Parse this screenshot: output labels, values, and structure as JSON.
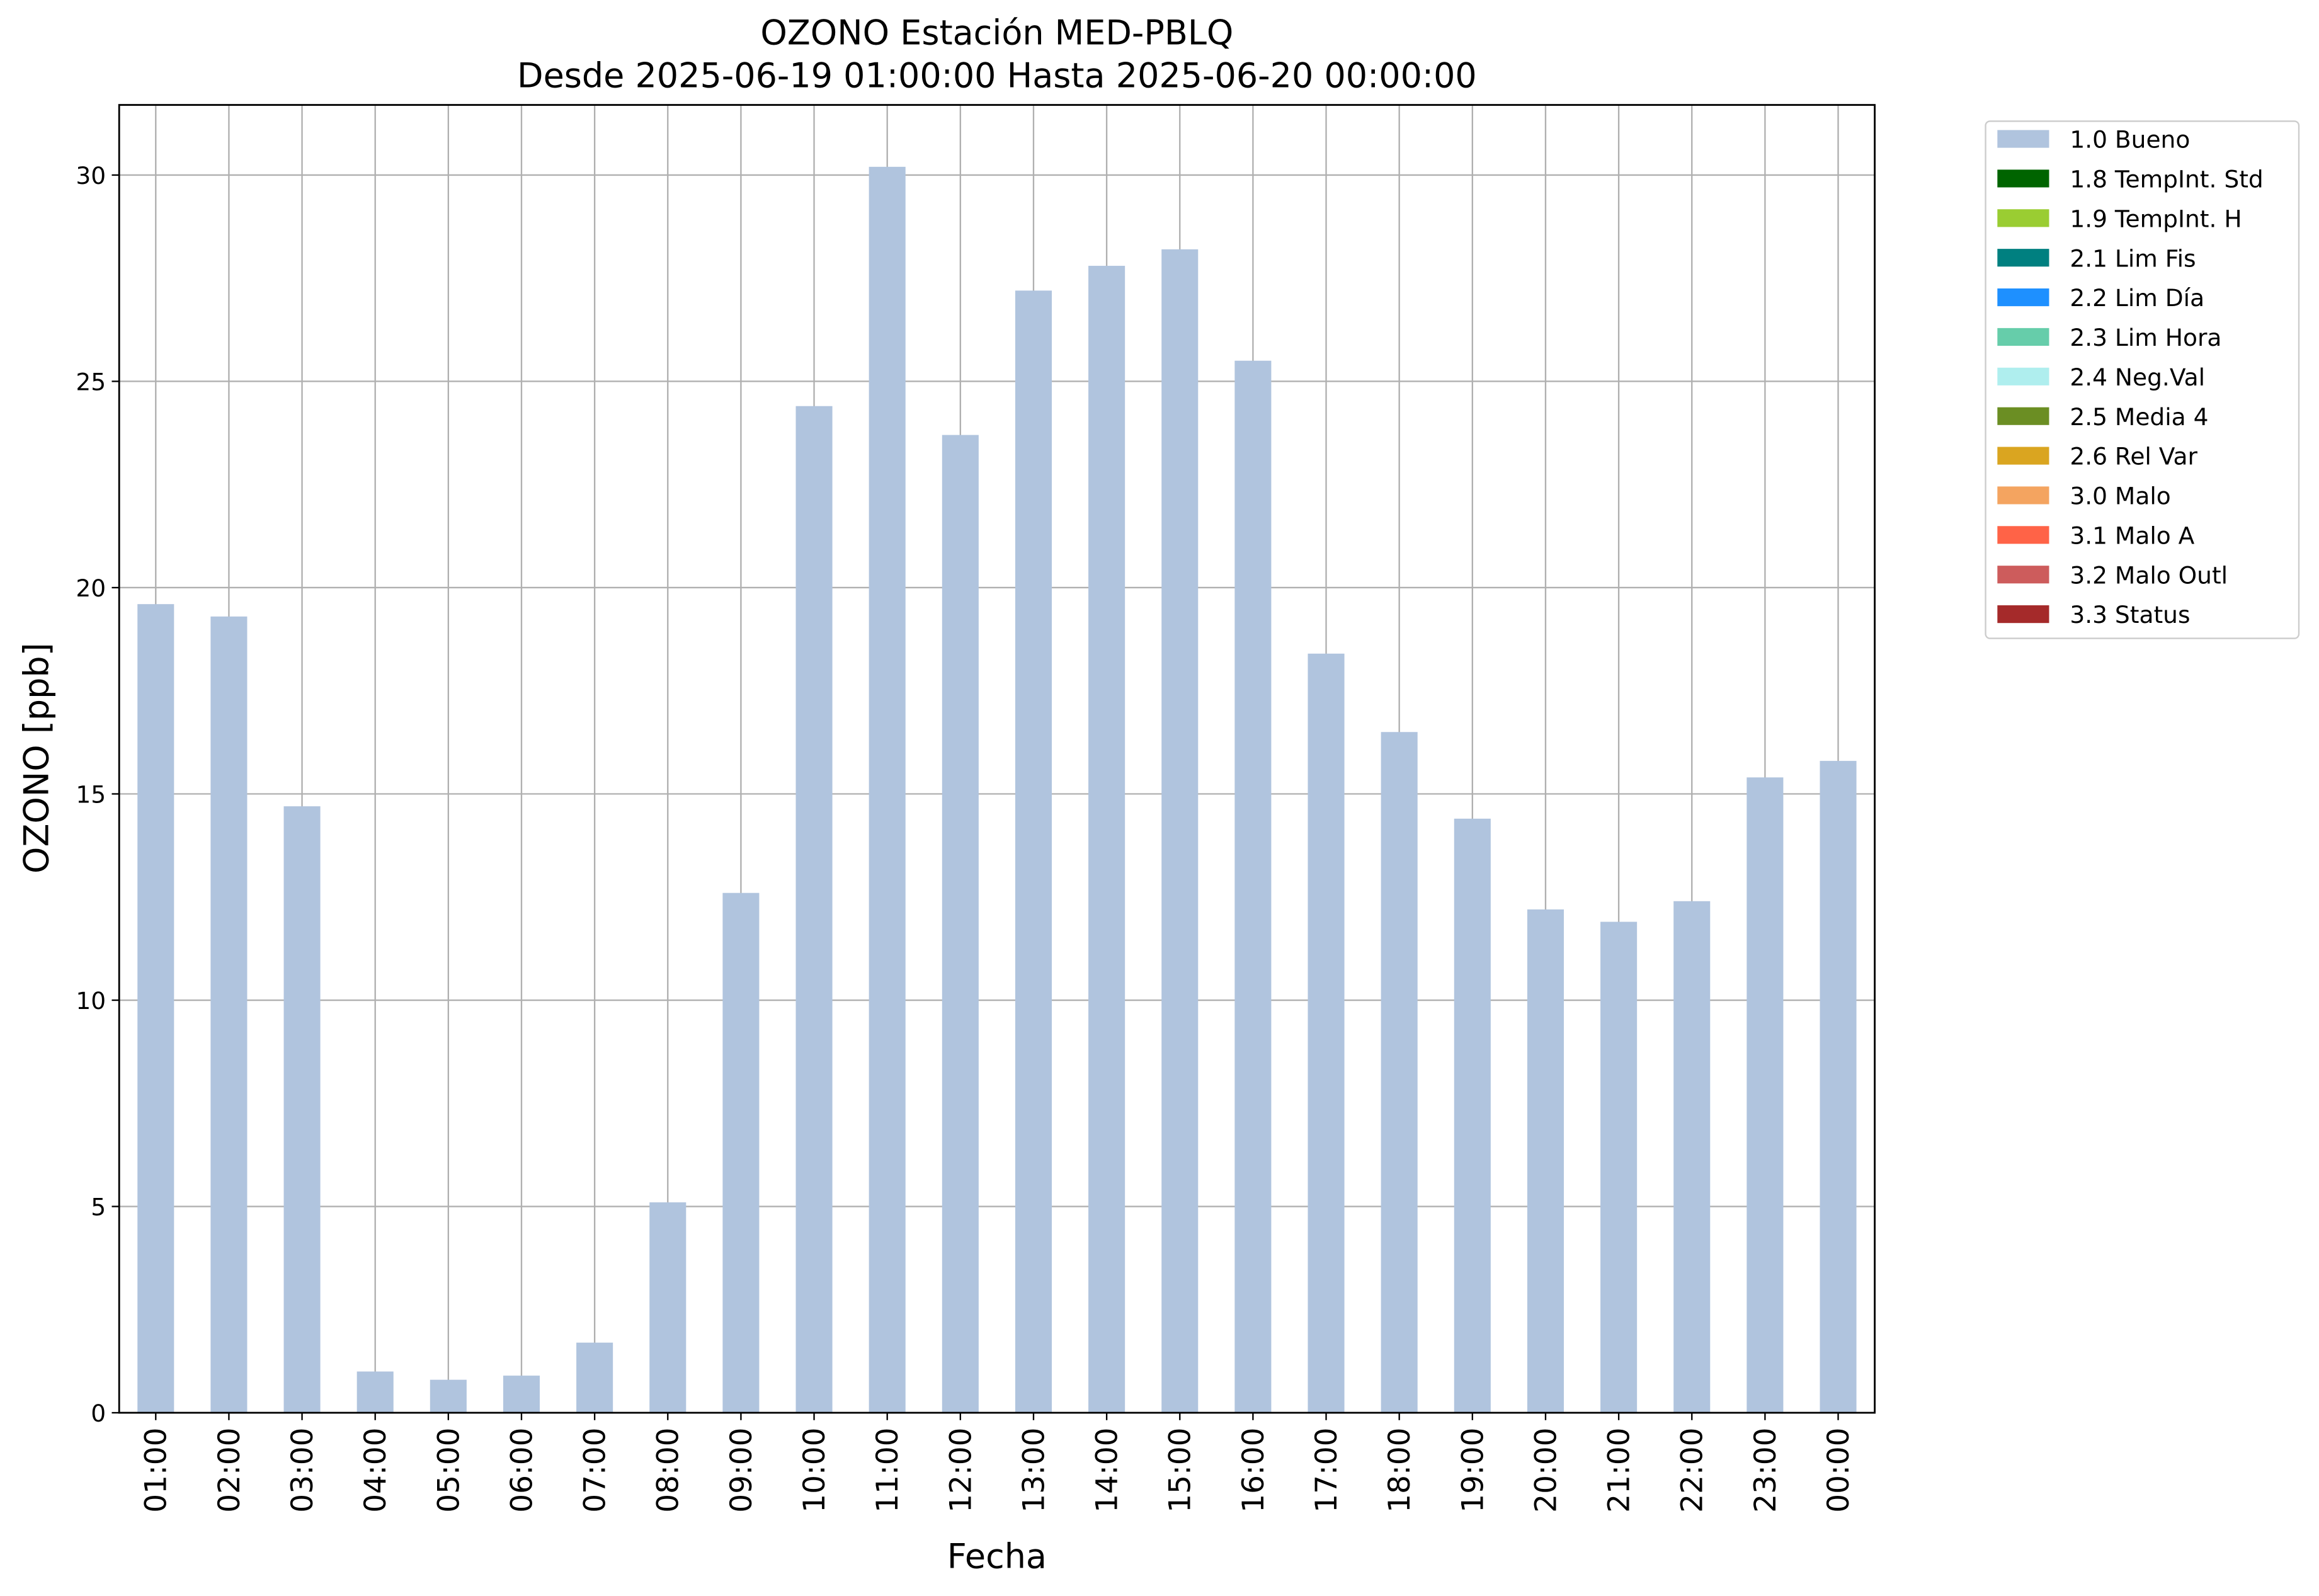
{
  "chart_data": {
    "type": "bar",
    "stacked": true,
    "title": "OZONO Estación MED-PBLQ",
    "subtitle": "Desde 2025-06-19 01:00:00 Hasta 2025-06-20 00:00:00",
    "x_label": "Fecha",
    "y_label": "OZONO [ppb]",
    "categories": [
      "01:00",
      "02:00",
      "03:00",
      "04:00",
      "05:00",
      "06:00",
      "07:00",
      "08:00",
      "09:00",
      "10:00",
      "11:00",
      "12:00",
      "13:00",
      "14:00",
      "15:00",
      "16:00",
      "17:00",
      "18:00",
      "19:00",
      "20:00",
      "21:00",
      "22:00",
      "23:00",
      "00:00"
    ],
    "series": [
      {
        "name": "1.0 Bueno",
        "color": "#b0c4de",
        "values": [
          19.6,
          19.3,
          14.7,
          1.0,
          0.8,
          0.9,
          1.7,
          5.1,
          12.6,
          24.4,
          30.2,
          23.7,
          27.2,
          27.8,
          28.2,
          25.5,
          18.4,
          16.5,
          14.4,
          12.2,
          11.9,
          12.4,
          15.4,
          15.8
        ]
      },
      {
        "name": "1.8 TempInt. Std",
        "color": "#006400",
        "values": [
          0,
          0,
          0,
          0,
          0,
          0,
          0,
          0,
          0,
          0,
          0,
          0,
          0,
          0,
          0,
          0,
          0,
          0,
          0,
          0,
          0,
          0,
          0,
          0
        ]
      },
      {
        "name": "1.9 TempInt. H",
        "color": "#9acd32",
        "values": [
          0,
          0,
          0,
          0,
          0,
          0,
          0,
          0,
          0,
          0,
          0,
          0,
          0,
          0,
          0,
          0,
          0,
          0,
          0,
          0,
          0,
          0,
          0,
          0
        ]
      },
      {
        "name": "2.1 Lim Fis",
        "color": "#008080",
        "values": [
          0,
          0,
          0,
          0,
          0,
          0,
          0,
          0,
          0,
          0,
          0,
          0,
          0,
          0,
          0,
          0,
          0,
          0,
          0,
          0,
          0,
          0,
          0,
          0
        ]
      },
      {
        "name": "2.2 Lim Día",
        "color": "#1e90ff",
        "values": [
          0,
          0,
          0,
          0,
          0,
          0,
          0,
          0,
          0,
          0,
          0,
          0,
          0,
          0,
          0,
          0,
          0,
          0,
          0,
          0,
          0,
          0,
          0,
          0
        ]
      },
      {
        "name": "2.3 Lim Hora",
        "color": "#66cdaa",
        "values": [
          0,
          0,
          0,
          0,
          0,
          0,
          0,
          0,
          0,
          0,
          0,
          0,
          0,
          0,
          0,
          0,
          0,
          0,
          0,
          0,
          0,
          0,
          0,
          0
        ]
      },
      {
        "name": "2.4 Neg.Val",
        "color": "#afeeee",
        "values": [
          0,
          0,
          0,
          0,
          0,
          0,
          0,
          0,
          0,
          0,
          0,
          0,
          0,
          0,
          0,
          0,
          0,
          0,
          0,
          0,
          0,
          0,
          0,
          0
        ]
      },
      {
        "name": "2.5 Media 4",
        "color": "#6b8e23",
        "values": [
          0,
          0,
          0,
          0,
          0,
          0,
          0,
          0,
          0,
          0,
          0,
          0,
          0,
          0,
          0,
          0,
          0,
          0,
          0,
          0,
          0,
          0,
          0,
          0
        ]
      },
      {
        "name": "2.6 Rel Var",
        "color": "#daa520",
        "values": [
          0,
          0,
          0,
          0,
          0,
          0,
          0,
          0,
          0,
          0,
          0,
          0,
          0,
          0,
          0,
          0,
          0,
          0,
          0,
          0,
          0,
          0,
          0,
          0
        ]
      },
      {
        "name": "3.0 Malo",
        "color": "#f4a460",
        "values": [
          0,
          0,
          0,
          0,
          0,
          0,
          0,
          0,
          0,
          0,
          0,
          0,
          0,
          0,
          0,
          0,
          0,
          0,
          0,
          0,
          0,
          0,
          0,
          0
        ]
      },
      {
        "name": "3.1 Malo A",
        "color": "#ff6347",
        "values": [
          0,
          0,
          0,
          0,
          0,
          0,
          0,
          0,
          0,
          0,
          0,
          0,
          0,
          0,
          0,
          0,
          0,
          0,
          0,
          0,
          0,
          0,
          0,
          0
        ]
      },
      {
        "name": "3.2 Malo Outl",
        "color": "#cd5c5c",
        "values": [
          0,
          0,
          0,
          0,
          0,
          0,
          0,
          0,
          0,
          0,
          0,
          0,
          0,
          0,
          0,
          0,
          0,
          0,
          0,
          0,
          0,
          0,
          0,
          0
        ]
      },
      {
        "name": "3.3 Status",
        "color": "#a52a2a",
        "values": [
          0,
          0,
          0,
          0,
          0,
          0,
          0,
          0,
          0,
          0,
          0,
          0,
          0,
          0,
          0,
          0,
          0,
          0,
          0,
          0,
          0,
          0,
          0,
          0
        ]
      }
    ],
    "ylim": [
      0,
      31.7
    ],
    "yticks": [
      0,
      5,
      10,
      15,
      20,
      25,
      30
    ],
    "grid": true,
    "legend": "outside-upper-right"
  }
}
